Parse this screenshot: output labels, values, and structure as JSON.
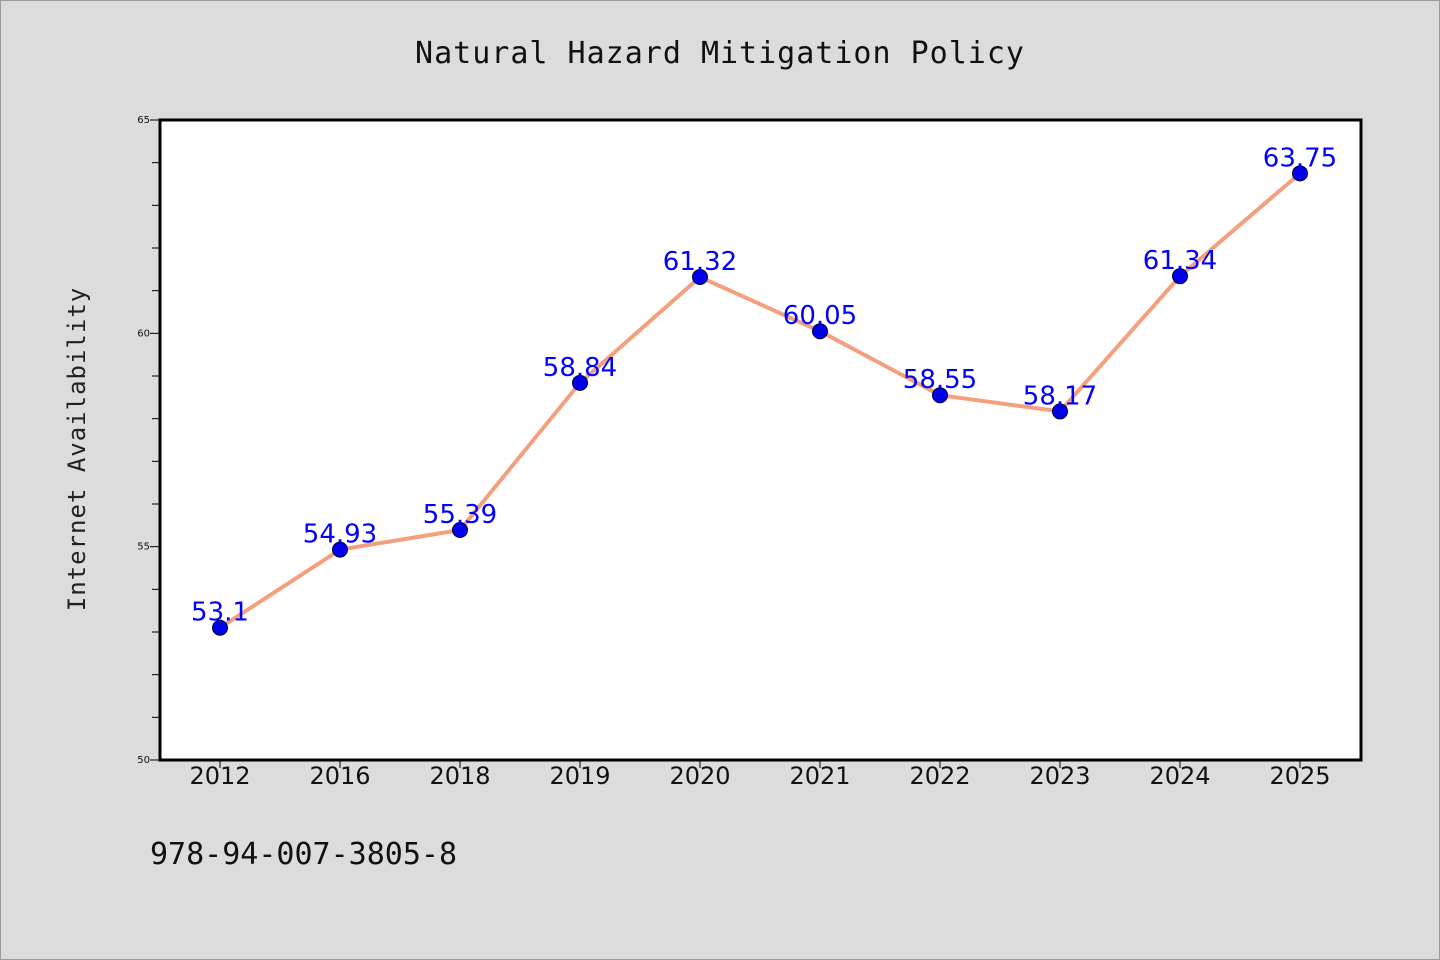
{
  "chart_data": {
    "type": "line",
    "title": "Natural Hazard Mitigation Policy",
    "ylabel": "Internet Availability",
    "xlabel": "",
    "categories": [
      "2012",
      "2016",
      "2018",
      "2019",
      "2020",
      "2021",
      "2022",
      "2023",
      "2024",
      "2025"
    ],
    "values": [
      53.1,
      54.93,
      55.39,
      58.84,
      61.32,
      60.05,
      58.55,
      58.17,
      61.34,
      63.75
    ],
    "data_labels": [
      "53.1",
      "54.93",
      "55.39",
      "58.84",
      "61.32",
      "60.05",
      "58.55",
      "58.17",
      "61.34",
      "63.75"
    ],
    "ylim": [
      50,
      65
    ],
    "yticks": [
      50,
      55,
      60,
      65
    ],
    "ytick_labels": [
      "50",
      "55",
      "60",
      "65"
    ],
    "grid": false,
    "legend": "none",
    "colors": {
      "line": "#f4a07e",
      "marker": "#0000ee",
      "data_label": "#0000ff",
      "background": "#dcdcdc",
      "plot_background": "#ffffff"
    }
  },
  "footer": {
    "text": "978-94-007-3805-8"
  }
}
